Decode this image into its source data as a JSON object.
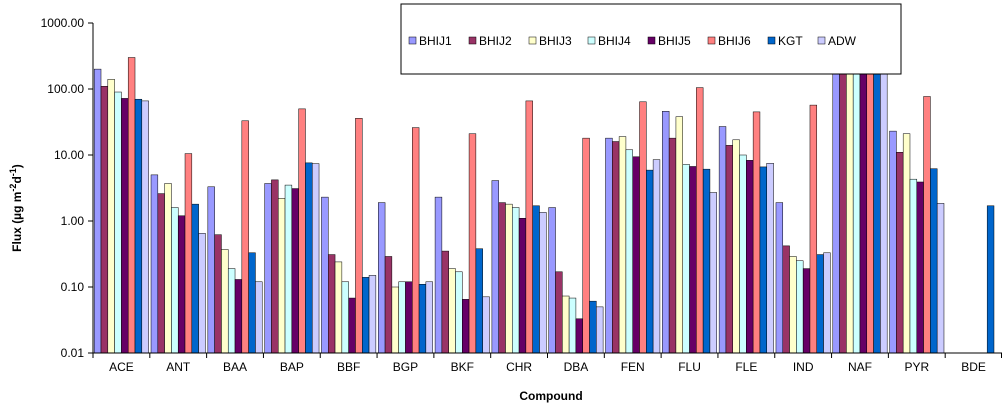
{
  "chart_data": {
    "type": "bar",
    "xlabel": "Compound",
    "ylabel": {
      "base": "Flux (µg m",
      "sup1": "-2",
      "mid": "d",
      "sup2": "-1",
      "end": ")"
    },
    "yscale": "log",
    "ylim": [
      0.01,
      1000
    ],
    "yticks": [
      "0.01",
      "0.10",
      "1.00",
      "10.00",
      "100.00",
      "1000.00"
    ],
    "legend_position": "top-right",
    "grid": false,
    "categories": [
      "ACE",
      "ANT",
      "BAA",
      "BAP",
      "BBF",
      "BGP",
      "BKF",
      "CHR",
      "DBA",
      "FEN",
      "FLU",
      "FLE",
      "IND",
      "NAF",
      "PYR",
      "BDE"
    ],
    "series": [
      {
        "name": "BHIJ1",
        "color": "#9999ff",
        "values": [
          200,
          5.0,
          3.3,
          3.7,
          2.3,
          1.9,
          2.3,
          4.1,
          1.6,
          18,
          46,
          27,
          1.9,
          180,
          23,
          null
        ]
      },
      {
        "name": "BHIJ2",
        "color": "#993366",
        "values": [
          110,
          2.6,
          0.62,
          4.2,
          0.31,
          0.29,
          0.35,
          1.9,
          0.17,
          16,
          18,
          14,
          0.42,
          390,
          11,
          null
        ]
      },
      {
        "name": "BHIJ3",
        "color": "#ffffcc",
        "values": [
          140,
          3.7,
          0.37,
          2.2,
          0.24,
          0.1,
          0.19,
          1.8,
          0.073,
          19,
          38,
          17,
          0.29,
          290,
          21,
          null
        ]
      },
      {
        "name": "BHIJ4",
        "color": "#ccffff",
        "values": [
          90,
          1.6,
          0.19,
          3.5,
          0.12,
          0.12,
          0.17,
          1.6,
          0.068,
          12,
          7.2,
          10,
          0.25,
          380,
          4.3,
          null
        ]
      },
      {
        "name": "BHIJ5",
        "color": "#660066",
        "values": [
          72,
          1.2,
          0.13,
          3.1,
          0.068,
          0.12,
          0.065,
          1.1,
          0.033,
          9.4,
          6.7,
          8.3,
          0.19,
          300,
          3.9,
          null
        ]
      },
      {
        "name": "BHIJ6",
        "color": "#ff8080",
        "values": [
          300,
          10.5,
          33,
          50,
          36,
          26,
          21,
          66,
          18,
          64,
          105,
          45,
          57,
          920,
          77,
          null
        ]
      },
      {
        "name": "KGT",
        "color": "#0066cc",
        "values": [
          70,
          1.8,
          0.33,
          7.6,
          0.14,
          0.11,
          0.38,
          1.7,
          0.061,
          5.9,
          6.1,
          6.6,
          0.31,
          360,
          6.2,
          1.7
        ]
      },
      {
        "name": "ADW",
        "color": "#ccccff",
        "values": [
          66,
          0.65,
          0.12,
          7.4,
          0.15,
          0.12,
          0.071,
          1.35,
          0.05,
          8.5,
          2.7,
          7.5,
          0.33,
          330,
          1.85,
          null
        ]
      }
    ]
  }
}
